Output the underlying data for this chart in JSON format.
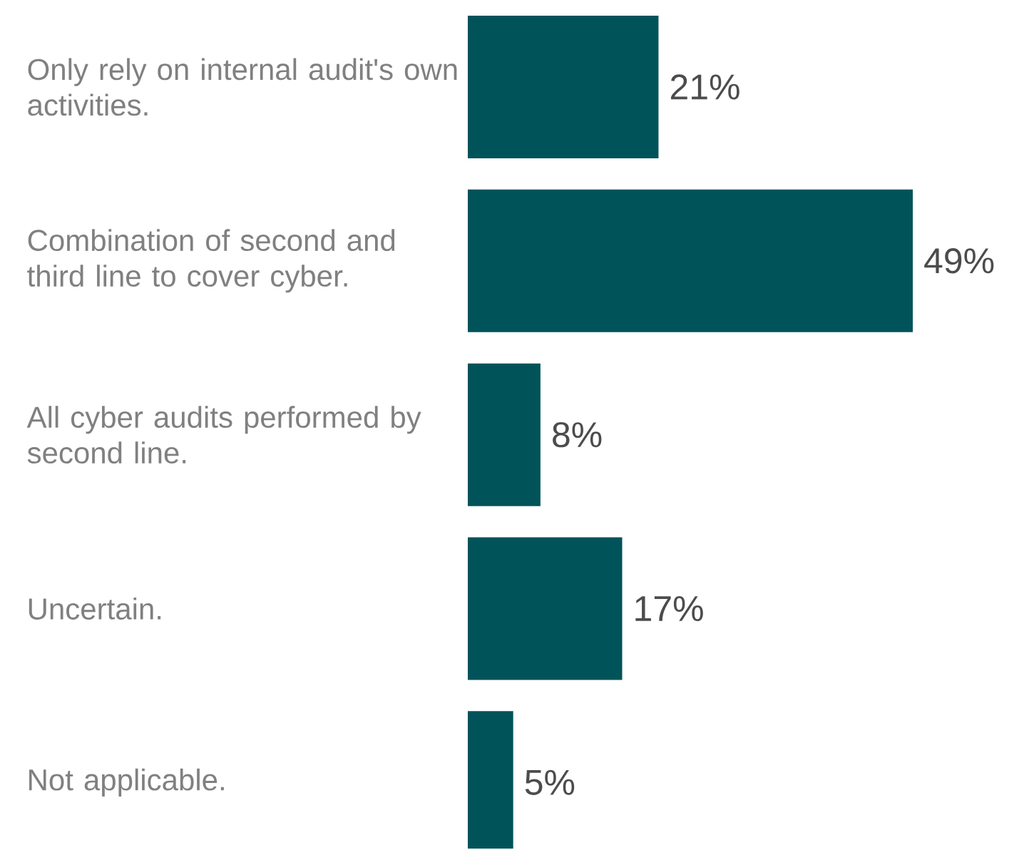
{
  "chart_data": {
    "type": "bar",
    "orientation": "horizontal",
    "categories": [
      "Only rely on internal audit's own activities.",
      "Combination of second and third line to cover cyber.",
      "All cyber audits performed by second line.",
      "Uncertain.",
      "Not applicable."
    ],
    "values": [
      21,
      49,
      8,
      17,
      5
    ],
    "value_labels": [
      "21%",
      "49%",
      "8%",
      "17%",
      "5%"
    ],
    "color": "#01535a"
  }
}
